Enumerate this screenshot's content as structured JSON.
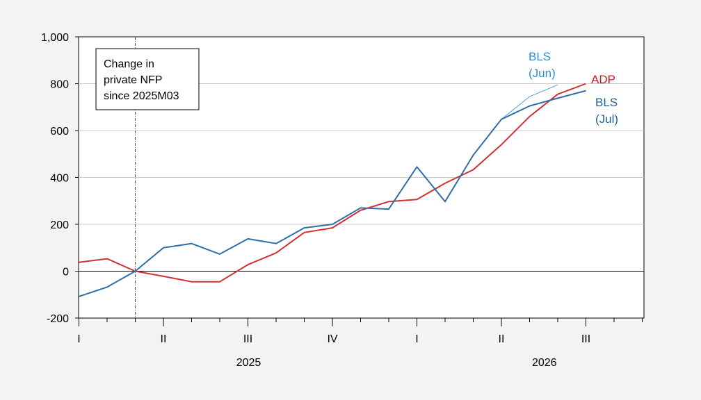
{
  "chart_data": {
    "type": "line",
    "annotation": [
      "Change in",
      "private NFP",
      "since 2025M03"
    ],
    "y_ticks": [
      "1,000",
      "800",
      "600",
      "400",
      "200",
      "0",
      "-200"
    ],
    "ylim": [
      -200,
      1000
    ],
    "x_range": [
      0,
      20
    ],
    "quarter_labels": [
      {
        "x": 0,
        "label": "I"
      },
      {
        "x": 3,
        "label": "II"
      },
      {
        "x": 6,
        "label": "III"
      },
      {
        "x": 9,
        "label": "IV"
      },
      {
        "x": 12,
        "label": "I"
      },
      {
        "x": 15,
        "label": "II"
      },
      {
        "x": 18,
        "label": "III"
      }
    ],
    "year_labels": [
      {
        "x": 6,
        "label": "2025"
      },
      {
        "x": 16.5,
        "label": "2026"
      }
    ],
    "reference_line_x": 2,
    "grid": true,
    "series": [
      {
        "name": "ADP",
        "color": "#d03030",
        "x": [
          0,
          1,
          2,
          3,
          4,
          5,
          6,
          7,
          8,
          9,
          10,
          11,
          12,
          13,
          14,
          15,
          16,
          17,
          18
        ],
        "values": [
          38,
          53,
          0,
          -22,
          -45,
          -45,
          28,
          78,
          165,
          185,
          260,
          297,
          306,
          375,
          433,
          540,
          660,
          755,
          800
        ]
      },
      {
        "name": "BLS (Jun)",
        "color": "#4aa3d6",
        "x": [
          15,
          16,
          17
        ],
        "values": [
          648,
          745,
          795
        ]
      },
      {
        "name": "BLS (Jul)",
        "color": "#2f6fa8",
        "x": [
          0,
          1,
          2,
          3,
          4,
          5,
          6,
          7,
          8,
          9,
          10,
          11,
          12,
          13,
          14,
          15,
          16,
          17,
          18
        ],
        "values": [
          -108,
          -68,
          0,
          100,
          118,
          73,
          138,
          118,
          185,
          200,
          270,
          265,
          445,
          297,
          495,
          648,
          705,
          738,
          770
        ]
      }
    ],
    "series_labels": [
      {
        "lines": [
          "BLS",
          "(Jun)"
        ],
        "color": "#2b8fd0"
      },
      {
        "lines": [
          "ADP"
        ],
        "color": "#d01818"
      },
      {
        "lines": [
          "BLS",
          "(Jul)"
        ],
        "color": "#1f5f99"
      }
    ]
  }
}
